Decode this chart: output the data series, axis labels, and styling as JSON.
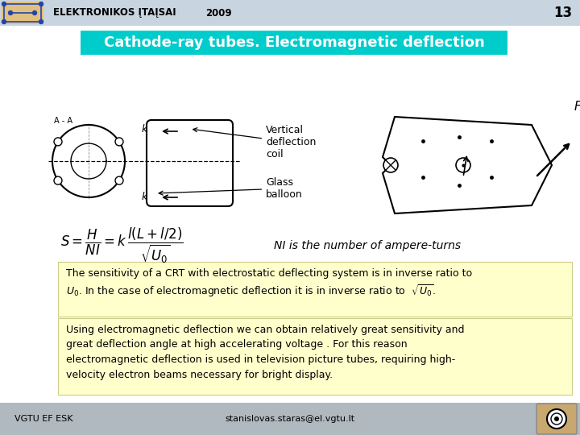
{
  "header_text": "ELEKTRONIKOS ĮTAĮSAI",
  "header_year": "2009",
  "header_page": "13",
  "header_bg": "#c8d4e0",
  "title_text": "Cathode-ray tubes. Electromagnetic deflection",
  "title_bg": "#00cccc",
  "title_color": "#ffffff",
  "label1": "Vertical\ndeflection\ncoil",
  "label2": "Glass\nballoon",
  "formula_ni": "NI is the number of ampere-turns",
  "box1_line1": "The sensitivity of a CRT with electrostatic deflecting system is in inverse ratio to",
  "box1_line2": "$U_0$. In the case of electromagnetic deflection it is in inverse ratio to  $\\sqrt{U_0}$.",
  "box2_text": "Using electromagnetic deflection we can obtain relatively great sensitivity and\ngreat deflection angle at high accelerating voltage . For this reason\nelectromagnetic deflection is used in television picture tubes, requiring high-\nvelocity electron beams necessary for bright display.",
  "box_bg": "#ffffcc",
  "footer_left": "VGTU EF ESK",
  "footer_center": "stanislovas.staras@el.vgtu.lt",
  "footer_bg": "#b0b8c0",
  "bg_color": "#e8eef4"
}
